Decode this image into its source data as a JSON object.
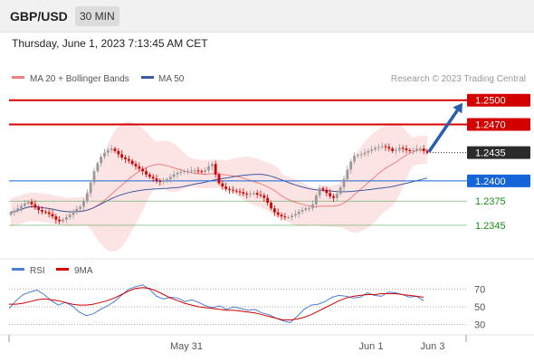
{
  "header": {
    "symbol": "GBP/USD",
    "timeframe": "30 MIN"
  },
  "datetime": "Thursday, June 1, 2023 7:13:45 AM CET",
  "colors": {
    "bollinger_fill": "#fde4e4",
    "ma20": "#f08080",
    "ma50": "#3d5a9e",
    "resistance": "#d40000",
    "current": "#2b2b2b",
    "pivot": "#1565d8",
    "support": "#1c8a1c",
    "arrow": "#2b5db0",
    "candle_up": "#999999",
    "candle_down": "#d40000",
    "rsi": "#4a7fd4",
    "rsi_ma": "#d40000"
  },
  "chart_data": [
    {
      "type": "candlestick",
      "title": "",
      "legend": [
        {
          "name": "MA 20 + Bollinger Bands",
          "color": "#f08080"
        },
        {
          "name": "MA 50",
          "color": "#3d5a9e"
        }
      ],
      "watermark": "Research © 2023 Trading Central",
      "x_ticks": [
        "May 31",
        "Jun 1",
        "Jun 3"
      ],
      "ylim": [
        1.2327,
        1.2512
      ],
      "levels": [
        {
          "value": 1.25,
          "label": "1.2500",
          "kind": "resistance"
        },
        {
          "value": 1.247,
          "label": "1.2470",
          "kind": "resistance"
        },
        {
          "value": 1.2435,
          "label": "1.2435",
          "kind": "current"
        },
        {
          "value": 1.24,
          "label": "1.2400",
          "kind": "pivot"
        },
        {
          "value": 1.2375,
          "label": "1.2375",
          "kind": "support"
        },
        {
          "value": 1.2345,
          "label": "1.2345",
          "kind": "support"
        }
      ],
      "forecast_arrow": {
        "from": 1.2435,
        "to": 1.25
      },
      "close_series": [
        1.2361,
        1.2363,
        1.2366,
        1.2369,
        1.2372,
        1.2374,
        1.2371,
        1.2367,
        1.2364,
        1.2362,
        1.2361,
        1.2359,
        1.2356,
        1.2352,
        1.235,
        1.2352,
        1.2355,
        1.2358,
        1.2362,
        1.2365,
        1.2368,
        1.2375,
        1.2385,
        1.2398,
        1.2412,
        1.2422,
        1.243,
        1.2435,
        1.2438,
        1.244,
        1.2437,
        1.2433,
        1.2429,
        1.2427,
        1.2425,
        1.2421,
        1.2418,
        1.2415,
        1.2412,
        1.2408,
        1.2405,
        1.2403,
        1.24,
        1.2399,
        1.24,
        1.2402,
        1.2405,
        1.2408,
        1.241,
        1.2411,
        1.2412,
        1.2412,
        1.2413,
        1.2413,
        1.2412,
        1.2411,
        1.2413,
        1.2418,
        1.2421,
        1.2408,
        1.2397,
        1.2393,
        1.239,
        1.2389,
        1.2388,
        1.2387,
        1.2386,
        1.2384,
        1.2383,
        1.2384,
        1.2385,
        1.2383,
        1.2382,
        1.2379,
        1.2373,
        1.2366,
        1.2361,
        1.2358,
        1.2356,
        1.2355,
        1.2355,
        1.2357,
        1.2359,
        1.2362,
        1.2364,
        1.2366,
        1.2366,
        1.2371,
        1.2382,
        1.2391,
        1.2389,
        1.2385,
        1.2381,
        1.2379,
        1.2384,
        1.2392,
        1.2402,
        1.2414,
        1.2424,
        1.2431,
        1.2432,
        1.2433,
        1.2435,
        1.2437,
        1.2439,
        1.2441,
        1.2442,
        1.2443,
        1.2442,
        1.244,
        1.2437,
        1.2438,
        1.2441,
        1.244,
        1.2438,
        1.2437,
        1.2438,
        1.244,
        1.244,
        1.2437,
        1.2435
      ]
    },
    {
      "type": "line",
      "title": "",
      "legend": [
        {
          "name": "RSI",
          "color": "#4a7fd4"
        },
        {
          "name": "9MA",
          "color": "#d40000"
        }
      ],
      "y_ticks": [
        "70",
        "50",
        "30"
      ],
      "ylim": [
        20,
        80
      ],
      "series": [
        {
          "name": "RSI",
          "values": [
            48,
            57,
            64,
            67,
            69,
            64,
            57,
            52,
            55,
            51,
            44,
            40,
            42,
            47,
            51,
            56,
            63,
            70,
            73,
            75,
            70,
            62,
            59,
            61,
            60,
            56,
            58,
            55,
            51,
            49,
            51,
            47,
            50,
            48,
            46,
            47,
            43,
            41,
            37,
            34,
            32,
            39,
            47,
            52,
            53,
            56,
            61,
            63,
            62,
            60,
            61,
            66,
            63,
            62,
            67,
            66,
            64,
            61,
            62,
            57
          ]
        },
        {
          "name": "9MA",
          "values": [
            53,
            53,
            54,
            56,
            58,
            59,
            58,
            57,
            55,
            53,
            52,
            52,
            53,
            55,
            57,
            60,
            64,
            68,
            71,
            72,
            71,
            68,
            64,
            60,
            57,
            54,
            52,
            50,
            49,
            48,
            47,
            46,
            46,
            45,
            44,
            43,
            41,
            39,
            37,
            35,
            35,
            36,
            38,
            41,
            45,
            49,
            53,
            57,
            60,
            62,
            63,
            64,
            64,
            65,
            65,
            65,
            64,
            63,
            62,
            61
          ]
        }
      ]
    }
  ]
}
